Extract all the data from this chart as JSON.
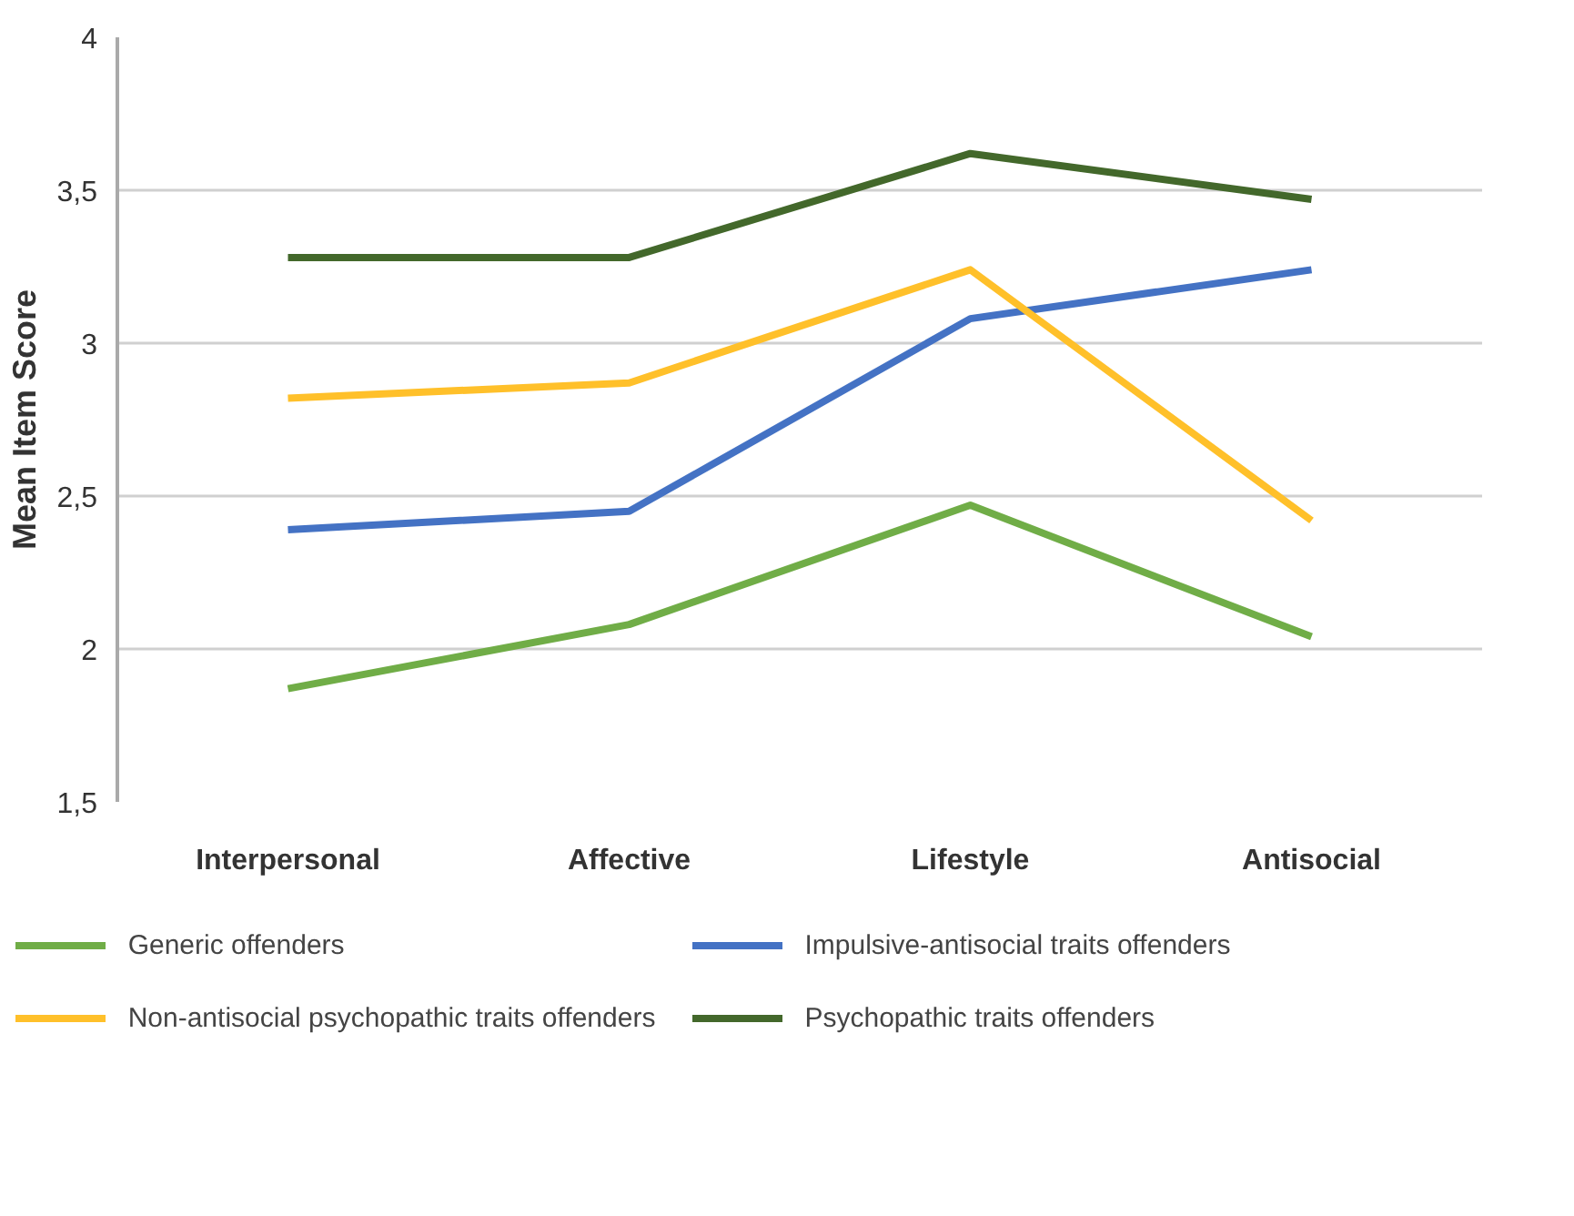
{
  "chart_data": {
    "type": "line",
    "ylabel": "Mean Item Score",
    "categories": [
      "Interpersonal",
      "Affective",
      "Lifestyle",
      "Antisocial"
    ],
    "series": [
      {
        "name": "Generic offenders",
        "color": "#70ad47",
        "values": [
          1.87,
          2.08,
          2.47,
          2.04
        ]
      },
      {
        "name": "Impulsive-antisocial traits offenders",
        "color": "#4472c4",
        "values": [
          2.39,
          2.45,
          3.08,
          3.24
        ]
      },
      {
        "name": "Non-antisocial psychopathic traits offenders",
        "color": "#ffc02a",
        "values": [
          2.82,
          2.87,
          3.24,
          2.42
        ]
      },
      {
        "name": "Psychopathic traits offenders",
        "color": "#43682b",
        "values": [
          3.28,
          3.28,
          3.62,
          3.47
        ]
      }
    ],
    "ylim": [
      1.5,
      4
    ],
    "yticks": [
      {
        "value": 1.5,
        "label": "1,5"
      },
      2,
      {
        "value": 2.5,
        "label": "2,5"
      },
      3,
      {
        "value": 3.5,
        "label": "3,5"
      },
      4
    ],
    "grid": "y",
    "legend": "bottom",
    "marker": "none",
    "line_style": "solid"
  }
}
